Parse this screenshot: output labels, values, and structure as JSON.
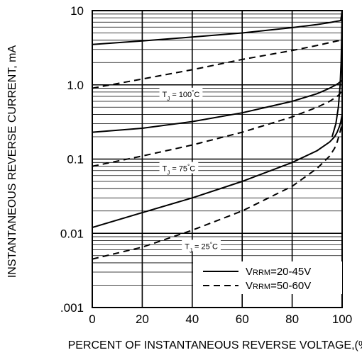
{
  "chart_data": {
    "type": "line",
    "title": "",
    "xlabel": "PERCENT OF INSTANTANEOUS REVERSE VOLTAGE,(%)",
    "ylabel": "INSTANTANEOUS REVERSE CURRENT, mA",
    "xlim": [
      0,
      100
    ],
    "ylim": [
      0.001,
      10
    ],
    "y_scale": "log",
    "grid": true,
    "x_ticks": [
      "0",
      "20",
      "40",
      "60",
      "80",
      "100"
    ],
    "y_ticks": [
      "10",
      "1.0",
      "0.1",
      "0.01",
      ".001"
    ],
    "legend_position": "bottom-right",
    "legend": [
      {
        "label": "VRRM=20-45V",
        "prefix": "V",
        "sub": "RRM",
        "rest": "=20-45V",
        "style": "solid"
      },
      {
        "label": "VRRM=50-60V",
        "prefix": "V",
        "sub": "RRM",
        "rest": "=50-60V",
        "style": "dashed"
      }
    ],
    "annotations": [
      {
        "text": "TJ = 100°C",
        "x": 28,
        "y": 0.75
      },
      {
        "text": "TJ = 75°C",
        "x": 28,
        "y": 0.075
      },
      {
        "text": "TJ = 25°C",
        "x": 37,
        "y": 0.0067
      }
    ],
    "series": [
      {
        "style": "solid",
        "x": [
          0,
          20,
          40,
          60,
          80,
          90,
          95,
          98,
          99,
          99.5,
          100
        ],
        "y": [
          3.5,
          3.9,
          4.4,
          5.0,
          5.9,
          6.5,
          6.9,
          7.2,
          7.3,
          7.4,
          10
        ]
      },
      {
        "style": "dashed",
        "x": [
          0,
          20,
          40,
          60,
          80,
          90,
          95,
          98,
          99,
          100
        ],
        "y": [
          0.9,
          1.2,
          1.6,
          2.2,
          2.9,
          3.4,
          3.7,
          3.9,
          3.95,
          4.0
        ]
      },
      {
        "style": "solid",
        "x": [
          0,
          20,
          40,
          60,
          80,
          90,
          95,
          98,
          99,
          99.5,
          100
        ],
        "y": [
          0.23,
          0.26,
          0.32,
          0.42,
          0.6,
          0.76,
          0.9,
          1.02,
          1.08,
          1.12,
          1.15
        ]
      },
      {
        "style": "dashed",
        "x": [
          0,
          20,
          40,
          60,
          80,
          90,
          95,
          98,
          99,
          100
        ],
        "y": [
          0.08,
          0.11,
          0.155,
          0.23,
          0.37,
          0.5,
          0.6,
          0.7,
          0.75,
          0.85
        ]
      },
      {
        "style": "solid",
        "x": [
          0,
          20,
          40,
          60,
          80,
          90,
          95,
          97,
          98,
          99,
          99.5,
          100
        ],
        "y": [
          0.012,
          0.019,
          0.03,
          0.05,
          0.09,
          0.13,
          0.17,
          0.2,
          0.23,
          0.28,
          0.32,
          0.4
        ]
      },
      {
        "style": "dashed",
        "x": [
          0,
          20,
          40,
          60,
          80,
          90,
          95,
          97,
          98,
          99,
          100
        ],
        "y": [
          0.0045,
          0.0065,
          0.011,
          0.02,
          0.043,
          0.075,
          0.11,
          0.14,
          0.17,
          0.22,
          0.3
        ]
      },
      {
        "style": "solid",
        "x": [
          96,
          97.5,
          98.5,
          99.2,
          99.6,
          99.8,
          100
        ],
        "y": [
          0.2,
          0.3,
          0.5,
          1.0,
          2.0,
          4.0,
          10
        ]
      }
    ]
  }
}
